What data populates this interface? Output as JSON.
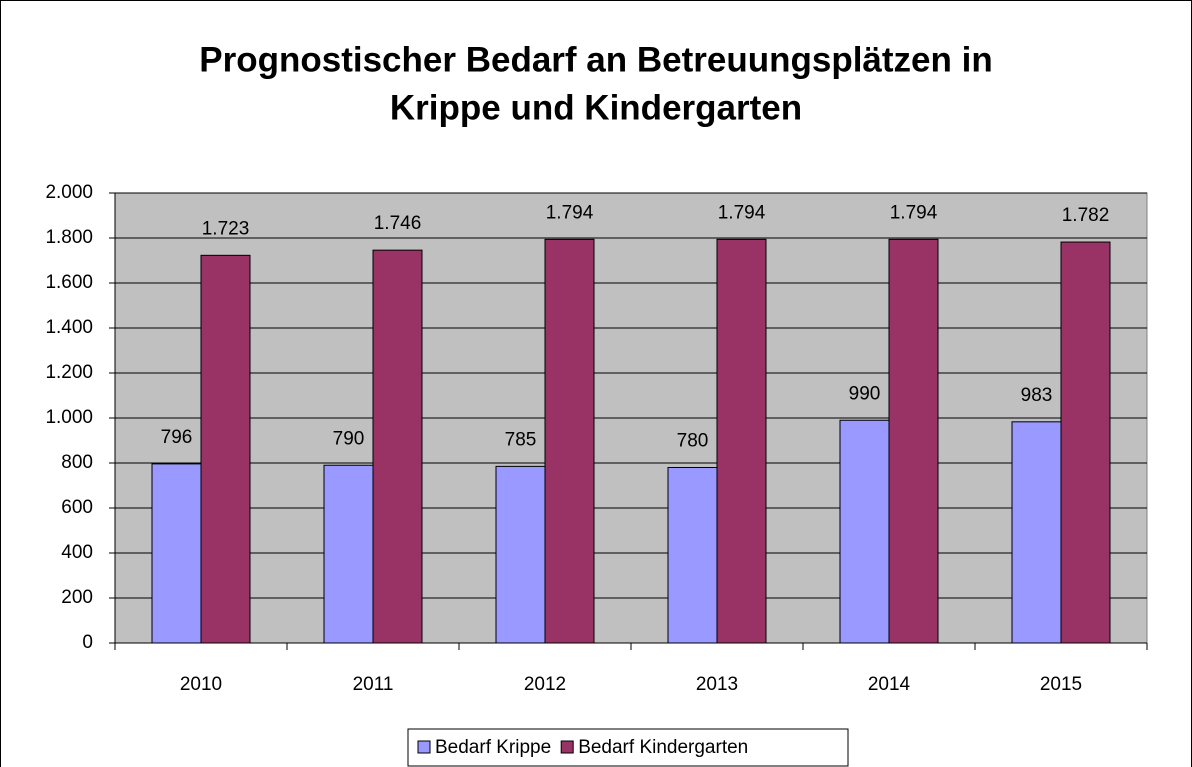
{
  "chart_data": {
    "type": "bar",
    "title": [
      "Prognostischer Bedarf an Betreuungsplätzen in",
      "Krippe und Kindergarten"
    ],
    "categories": [
      "2010",
      "2011",
      "2012",
      "2013",
      "2014",
      "2015"
    ],
    "series": [
      {
        "name": "Bedarf Krippe",
        "color": "#9999ff",
        "values": [
          796,
          790,
          785,
          780,
          990,
          983
        ]
      },
      {
        "name": "Bedarf Kindergarten",
        "color": "#993366",
        "values": [
          1723,
          1746,
          1794,
          1794,
          1794,
          1782
        ],
        "value_labels": [
          "1.723",
          "1.746",
          "1.794",
          "1.794",
          "1.794",
          "1.782"
        ]
      }
    ],
    "ylim": [
      0,
      2000
    ],
    "yticks": [
      0,
      200,
      400,
      600,
      800,
      {
        "value": 1000,
        "label": "1.000"
      },
      {
        "value": 1200,
        "label": "1.200"
      },
      {
        "value": 1400,
        "label": "1.400"
      },
      {
        "value": 1600,
        "label": "1.600"
      },
      {
        "value": 1800,
        "label": "1.800"
      },
      {
        "value": 2000,
        "label": "2.000"
      }
    ],
    "grid": true,
    "plot_background": "#c0c0c0",
    "legend": "bottom"
  }
}
